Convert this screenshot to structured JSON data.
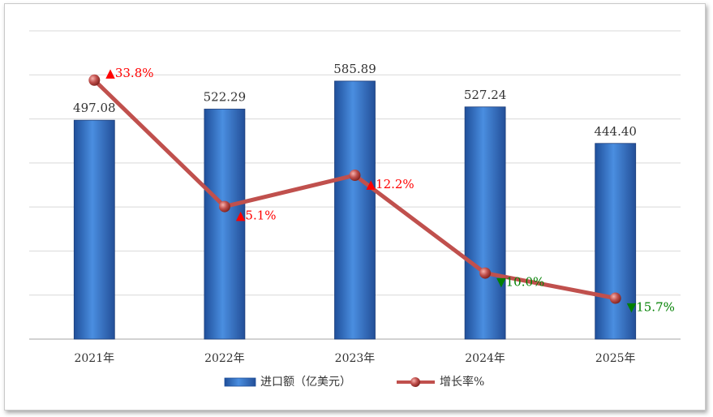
{
  "chart_data": {
    "type": "bar+line",
    "categories": [
      "2021年",
      "2022年",
      "2023年",
      "2024年",
      "2025年"
    ],
    "bar_series": {
      "name": "进口额（亿美元）",
      "values": [
        497.08,
        522.29,
        585.89,
        527.24,
        444.4
      ],
      "labels": [
        "497.08",
        "522.29",
        "585.89",
        "527.24",
        "444.40"
      ],
      "ylim": [
        0,
        700
      ],
      "color": "#3b78c9"
    },
    "line_series": {
      "name": "增长率%",
      "values": [
        33.8,
        5.1,
        12.2,
        -10.0,
        -15.7
      ],
      "labels": [
        "▲33.8%",
        "▲5.1%",
        "▲12.2%",
        "▼10.0%",
        "▼15.7%"
      ],
      "ylim": [
        -25,
        45
      ],
      "color": "#c0504d",
      "up_color": "#ff0000",
      "down_color": "#008000"
    },
    "grid": true,
    "legend_position": "bottom"
  }
}
